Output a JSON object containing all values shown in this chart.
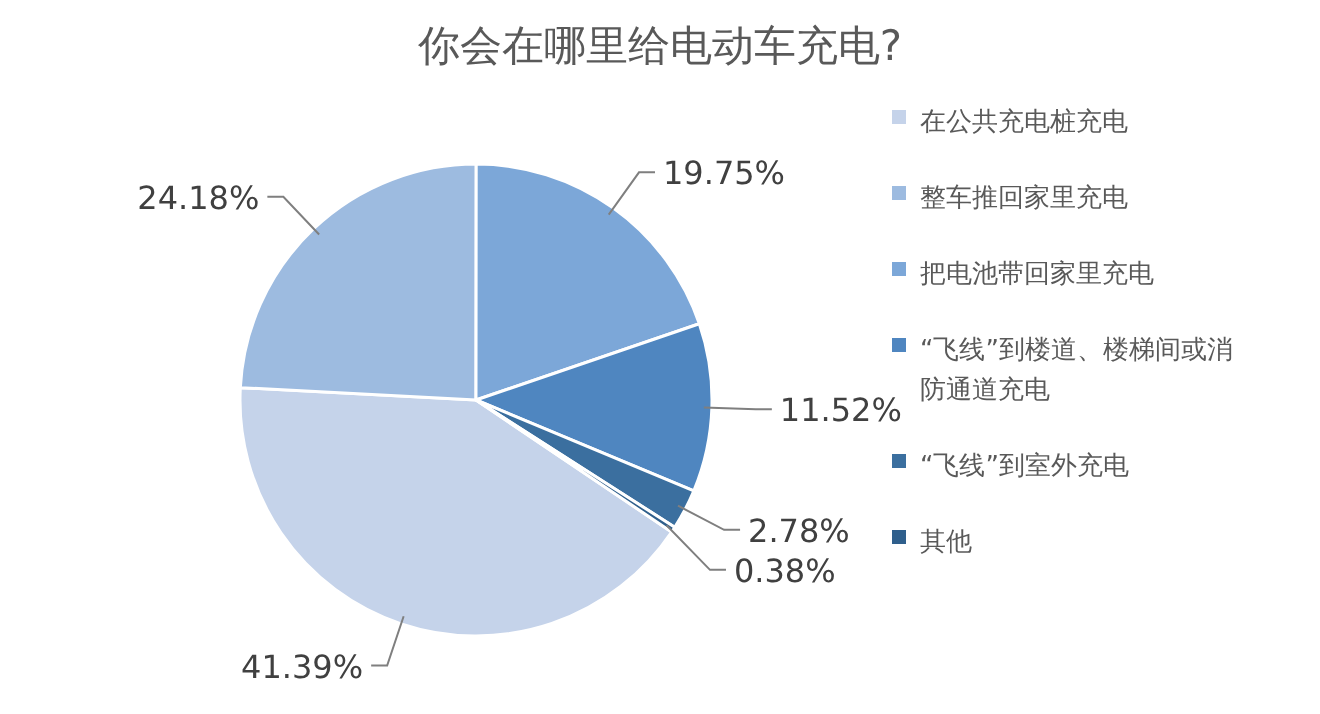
{
  "chart_data": {
    "type": "pie",
    "title": "你会在哪里给电动车充电?",
    "categories": [
      "在公共充电桩充电",
      "整车推回家里充电",
      "把电池带回家里充电",
      "“飞线”到楼道、楼梯间或消防通道充电",
      "“飞线”到室外充电",
      "其他"
    ],
    "values": [
      41.39,
      24.18,
      19.75,
      11.52,
      2.78,
      0.38
    ],
    "value_labels": [
      "41.39%",
      "24.18%",
      "19.75%",
      "11.52%",
      "2.78%",
      "0.38%"
    ],
    "colors": [
      "#c5d3ea",
      "#9dbbe0",
      "#7ca7d8",
      "#4f86c0",
      "#3b6f9f",
      "#2f5f8c"
    ],
    "legend": "right"
  }
}
